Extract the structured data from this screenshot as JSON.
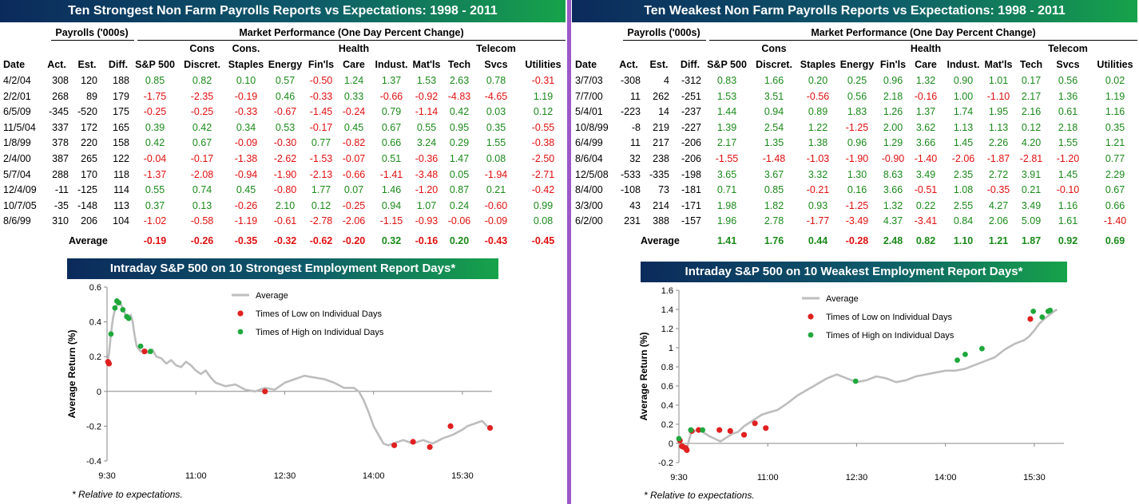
{
  "colors": {
    "positive": "#1a8a1a",
    "negative": "#e01010",
    "line": "#bdbdbd",
    "low_dot": "#e02020",
    "high_dot": "#1fa83c",
    "divider": "#9b59c6"
  },
  "strong": {
    "title": "Ten Strongest Non Farm Payrolls Reports vs Expectations: 1998 - 2011",
    "payrolls_label": "Payrolls ('000s)",
    "market_label": "Market Performance (One Day Percent Change)",
    "sector_top": [
      "",
      "Cons",
      "Cons.",
      "",
      "",
      "Health",
      "",
      "",
      "",
      "Telecom",
      ""
    ],
    "sector_bottom": [
      "S&P 500",
      "Discret.",
      "Staples",
      "Energy",
      "Fin'ls",
      "Care",
      "Indust.",
      "Mat'ls",
      "Tech",
      "Svcs",
      "Utilities"
    ],
    "col_date": "Date",
    "col_act": "Act.",
    "col_est": "Est.",
    "col_diff": "Diff.",
    "rows": [
      {
        "date": "4/2/04",
        "act": "308",
        "est": "120",
        "diff": "188",
        "vals": [
          "0.85",
          "0.82",
          "0.10",
          "0.57",
          "-0.50",
          "1.24",
          "1.37",
          "1.53",
          "2.63",
          "0.78",
          "-0.31"
        ]
      },
      {
        "date": "2/2/01",
        "act": "268",
        "est": "89",
        "diff": "179",
        "vals": [
          "-1.75",
          "-2.35",
          "-0.19",
          "0.46",
          "-0.33",
          "0.33",
          "-0.66",
          "-0.92",
          "-4.83",
          "-4.65",
          "1.19"
        ]
      },
      {
        "date": "6/5/09",
        "act": "-345",
        "est": "-520",
        "diff": "175",
        "vals": [
          "-0.25",
          "-0.25",
          "-0.33",
          "-0.67",
          "-1.45",
          "-0.24",
          "0.79",
          "-1.14",
          "0.42",
          "0.03",
          "0.12"
        ]
      },
      {
        "date": "11/5/04",
        "act": "337",
        "est": "172",
        "diff": "165",
        "vals": [
          "0.39",
          "0.42",
          "0.34",
          "0.53",
          "-0.17",
          "0.45",
          "0.67",
          "0.55",
          "0.95",
          "0.35",
          "-0.55"
        ]
      },
      {
        "date": "1/8/99",
        "act": "378",
        "est": "220",
        "diff": "158",
        "vals": [
          "0.42",
          "0.67",
          "-0.09",
          "-0.30",
          "0.77",
          "-0.82",
          "0.66",
          "3.24",
          "0.29",
          "1.55",
          "-0.38"
        ]
      },
      {
        "date": "2/4/00",
        "act": "387",
        "est": "265",
        "diff": "122",
        "vals": [
          "-0.04",
          "-0.17",
          "-1.38",
          "-2.62",
          "-1.53",
          "-0.07",
          "0.51",
          "-0.36",
          "1.47",
          "0.08",
          "-2.50"
        ]
      },
      {
        "date": "5/7/04",
        "act": "288",
        "est": "170",
        "diff": "118",
        "vals": [
          "-1.37",
          "-2.08",
          "-0.94",
          "-1.90",
          "-2.13",
          "-0.66",
          "-1.41",
          "-3.48",
          "0.05",
          "-1.94",
          "-2.71"
        ]
      },
      {
        "date": "12/4/09",
        "act": "-11",
        "est": "-125",
        "diff": "114",
        "vals": [
          "0.55",
          "0.74",
          "0.45",
          "-0.80",
          "1.77",
          "0.07",
          "1.46",
          "-1.20",
          "0.87",
          "0.21",
          "-0.42"
        ]
      },
      {
        "date": "10/7/05",
        "act": "-35",
        "est": "-148",
        "diff": "113",
        "vals": [
          "0.37",
          "0.13",
          "-0.26",
          "2.10",
          "0.12",
          "-0.25",
          "0.94",
          "1.07",
          "0.24",
          "-0.60",
          "0.99"
        ]
      },
      {
        "date": "8/6/99",
        "act": "310",
        "est": "206",
        "diff": "104",
        "vals": [
          "-1.02",
          "-0.58",
          "-1.19",
          "-0.61",
          "-2.78",
          "-2.06",
          "-1.15",
          "-0.93",
          "-0.06",
          "-0.09",
          "0.08"
        ]
      }
    ],
    "average_label": "Average",
    "averages": [
      "-0.19",
      "-0.26",
      "-0.35",
      "-0.32",
      "-0.62",
      "-0.20",
      "0.32",
      "-0.16",
      "0.20",
      "-0.43",
      "-0.45"
    ],
    "chart_title": "Intraday S&P 500 on 10 Strongest Employment Report Days*",
    "note": "* Relative to expectations."
  },
  "weak": {
    "title": "Ten Weakest Non Farm Payrolls Reports vs Expectations: 1998 - 2011",
    "payrolls_label": "Payrolls ('000s)",
    "market_label": "Market Performance (One Day Percent Change)",
    "sector_top": [
      "",
      "Cons",
      "",
      "",
      "",
      "Health",
      "",
      "",
      "",
      "Telecom",
      ""
    ],
    "sector_bottom": [
      "S&P 500",
      "Discret.",
      "Staples",
      "Energy",
      "Fin'ls",
      "Care",
      "Indust.",
      "Mat'ls",
      "Tech",
      "Svcs",
      "Utilities"
    ],
    "col_date": "Date",
    "col_act": "Act.",
    "col_est": "Est.",
    "col_diff": "Diff.",
    "rows": [
      {
        "date": "3/7/03",
        "act": "-308",
        "est": "4",
        "diff": "-312",
        "vals": [
          "0.83",
          "1.66",
          "0.20",
          "0.25",
          "0.96",
          "1.32",
          "0.90",
          "1.01",
          "0.17",
          "0.56",
          "0.02"
        ]
      },
      {
        "date": "7/7/00",
        "act": "11",
        "est": "262",
        "diff": "-251",
        "vals": [
          "1.53",
          "3.51",
          "-0.56",
          "0.56",
          "2.18",
          "-0.16",
          "1.00",
          "-1.10",
          "2.17",
          "1.36",
          "1.19"
        ]
      },
      {
        "date": "5/4/01",
        "act": "-223",
        "est": "14",
        "diff": "-237",
        "vals": [
          "1.44",
          "0.94",
          "0.89",
          "1.83",
          "1.26",
          "1.37",
          "1.74",
          "1.95",
          "2.16",
          "0.61",
          "1.16"
        ]
      },
      {
        "date": "10/8/99",
        "act": "-8",
        "est": "219",
        "diff": "-227",
        "vals": [
          "1.39",
          "2.54",
          "1.22",
          "-1.25",
          "2.00",
          "3.62",
          "1.13",
          "1.13",
          "0.12",
          "2.18",
          "0.35"
        ]
      },
      {
        "date": "6/4/99",
        "act": "11",
        "est": "217",
        "diff": "-206",
        "vals": [
          "2.17",
          "1.35",
          "1.38",
          "0.96",
          "1.29",
          "3.66",
          "1.45",
          "2.26",
          "4.20",
          "1.55",
          "1.21"
        ]
      },
      {
        "date": "8/6/04",
        "act": "32",
        "est": "238",
        "diff": "-206",
        "vals": [
          "-1.55",
          "-1.48",
          "-1.03",
          "-1.90",
          "-0.90",
          "-1.40",
          "-2.06",
          "-1.87",
          "-2.81",
          "-1.20",
          "0.77"
        ]
      },
      {
        "date": "12/5/08",
        "act": "-533",
        "est": "-335",
        "diff": "-198",
        "vals": [
          "3.65",
          "3.67",
          "3.32",
          "1.30",
          "8.63",
          "3.49",
          "2.35",
          "2.72",
          "3.91",
          "1.45",
          "2.29"
        ]
      },
      {
        "date": "8/4/00",
        "act": "-108",
        "est": "73",
        "diff": "-181",
        "vals": [
          "0.71",
          "0.85",
          "-0.21",
          "0.16",
          "3.66",
          "-0.51",
          "1.08",
          "-0.35",
          "0.21",
          "-0.10",
          "0.67"
        ]
      },
      {
        "date": "3/3/00",
        "act": "43",
        "est": "214",
        "diff": "-171",
        "vals": [
          "1.98",
          "1.82",
          "0.93",
          "-1.25",
          "1.32",
          "0.22",
          "2.55",
          "4.27",
          "3.49",
          "1.16",
          "0.66"
        ]
      },
      {
        "date": "6/2/00",
        "act": "231",
        "est": "388",
        "diff": "-157",
        "vals": [
          "1.96",
          "2.78",
          "-1.77",
          "-3.49",
          "4.37",
          "-3.41",
          "0.84",
          "2.06",
          "5.09",
          "1.61",
          "-1.40"
        ]
      }
    ],
    "average_label": "Average",
    "averages": [
      "1.41",
      "1.76",
      "0.44",
      "-0.28",
      "2.48",
      "0.82",
      "1.10",
      "1.21",
      "1.87",
      "0.92",
      "0.69"
    ],
    "chart_title": "Intraday S&P 500 on 10 Weakest Employment Report Days*",
    "note": "* Relative to expectations."
  },
  "chart_data": [
    {
      "type": "line",
      "title": "Intraday S&P 500 on 10 Strongest Employment Report Days*",
      "xlabel": "",
      "ylabel": "Average Return (%)",
      "xlim": [
        570,
        960
      ],
      "ylim": [
        -0.4,
        0.6
      ],
      "yticks": [
        -0.4,
        -0.2,
        0,
        0.2,
        0.4,
        0.6
      ],
      "ytick_labels": [
        "-0.4",
        "-0.2",
        "0",
        "0.2",
        "0.4",
        "0.6"
      ],
      "xticks": [
        570,
        660,
        750,
        840,
        930
      ],
      "xtick_labels": [
        "9:30",
        "11:00",
        "12:30",
        "14:00",
        "15:30"
      ],
      "legend": [
        "Average",
        "Times of Low on Individual Days",
        "Times of High on Individual Days"
      ],
      "legend_position": "top-right",
      "series": [
        {
          "name": "Average",
          "x": [
            570,
            572,
            574,
            576,
            578,
            580,
            582,
            584,
            586,
            588,
            590,
            592,
            594,
            596,
            598,
            600,
            604,
            608,
            612,
            616,
            620,
            625,
            630,
            635,
            640,
            645,
            650,
            655,
            660,
            665,
            670,
            675,
            680,
            690,
            700,
            710,
            720,
            730,
            740,
            750,
            760,
            770,
            780,
            790,
            800,
            810,
            820,
            825,
            830,
            835,
            840,
            845,
            850,
            855,
            860,
            870,
            880,
            890,
            900,
            910,
            920,
            930,
            935,
            940,
            945,
            950,
            955,
            958
          ],
          "y": [
            0.15,
            0.22,
            0.33,
            0.42,
            0.47,
            0.5,
            0.52,
            0.5,
            0.48,
            0.45,
            0.42,
            0.43,
            0.44,
            0.4,
            0.32,
            0.26,
            0.23,
            0.24,
            0.22,
            0.24,
            0.2,
            0.19,
            0.16,
            0.18,
            0.15,
            0.14,
            0.17,
            0.15,
            0.12,
            0.1,
            0.12,
            0.08,
            0.05,
            0.03,
            0.04,
            0.01,
            0.0,
            0.02,
            0.01,
            0.05,
            0.07,
            0.09,
            0.08,
            0.07,
            0.05,
            0.02,
            0.02,
            0.0,
            -0.05,
            -0.12,
            -0.2,
            -0.25,
            -0.3,
            -0.31,
            -0.3,
            -0.28,
            -0.3,
            -0.28,
            -0.3,
            -0.27,
            -0.25,
            -0.22,
            -0.2,
            -0.19,
            -0.18,
            -0.17,
            -0.2,
            -0.21
          ]
        },
        {
          "name": "Times of Low on Individual Days",
          "x": [
            571,
            572,
            608,
            730,
            861,
            880,
            897,
            918,
            958
          ],
          "y": [
            0.17,
            0.16,
            0.23,
            0.0,
            -0.31,
            -0.29,
            -0.32,
            -0.2,
            -0.21
          ]
        },
        {
          "name": "Times of High on Individual Days",
          "x": [
            574,
            578,
            580,
            582,
            586,
            590,
            592,
            604,
            614
          ],
          "y": [
            0.33,
            0.48,
            0.52,
            0.51,
            0.47,
            0.43,
            0.42,
            0.26,
            0.23
          ]
        }
      ]
    },
    {
      "type": "line",
      "title": "Intraday S&P 500 on 10 Weakest Employment Report Days*",
      "xlabel": "",
      "ylabel": "Average Return (%)",
      "xlim": [
        570,
        960
      ],
      "ylim": [
        -0.2,
        1.6
      ],
      "yticks": [
        -0.2,
        0,
        0.2,
        0.4,
        0.6,
        0.8,
        1.0,
        1.2,
        1.4,
        1.6
      ],
      "ytick_labels": [
        "-0.2",
        "0",
        "0.2",
        "0.4",
        "0.6",
        "0.8",
        "1",
        "1.2",
        "1.4",
        "1.6"
      ],
      "xticks": [
        570,
        660,
        750,
        840,
        930
      ],
      "xtick_labels": [
        "9:30",
        "11:00",
        "12:30",
        "14:00",
        "15:30"
      ],
      "legend": [
        "Average",
        "Times of Low on Individual Days",
        "Times of High on Individual Days"
      ],
      "legend_position": "top-left",
      "series": [
        {
          "name": "Average",
          "x": [
            570,
            574,
            578,
            582,
            586,
            590,
            594,
            600,
            606,
            612,
            618,
            624,
            630,
            636,
            642,
            648,
            654,
            660,
            670,
            680,
            690,
            700,
            710,
            720,
            730,
            740,
            750,
            760,
            770,
            780,
            790,
            800,
            810,
            820,
            830,
            840,
            850,
            860,
            870,
            880,
            890,
            900,
            910,
            920,
            925,
            930,
            935,
            940,
            945,
            950,
            953
          ],
          "y": [
            0.0,
            -0.04,
            -0.05,
            0.1,
            0.13,
            0.14,
            0.12,
            0.08,
            0.05,
            0.02,
            0.06,
            0.1,
            0.12,
            0.18,
            0.22,
            0.26,
            0.3,
            0.32,
            0.35,
            0.42,
            0.5,
            0.56,
            0.62,
            0.68,
            0.72,
            0.68,
            0.64,
            0.66,
            0.7,
            0.68,
            0.64,
            0.66,
            0.7,
            0.72,
            0.74,
            0.76,
            0.76,
            0.78,
            0.82,
            0.86,
            0.9,
            0.98,
            1.04,
            1.08,
            1.12,
            1.18,
            1.25,
            1.3,
            1.34,
            1.38,
            1.4
          ]
        },
        {
          "name": "Times of Low on Individual Days",
          "x": [
            571,
            573,
            575,
            577,
            578,
            583,
            590,
            611,
            622,
            636,
            647,
            658,
            926
          ],
          "y": [
            0.03,
            -0.03,
            -0.04,
            -0.05,
            -0.07,
            0.13,
            0.14,
            0.14,
            0.13,
            0.09,
            0.21,
            0.16,
            1.3
          ]
        },
        {
          "name": "Times of High on Individual Days",
          "x": [
            570,
            582,
            594,
            749,
            852,
            860,
            877,
            929,
            938,
            944,
            946
          ],
          "y": [
            0.05,
            0.14,
            0.14,
            0.65,
            0.87,
            0.93,
            0.99,
            1.38,
            1.32,
            1.38,
            1.39
          ]
        }
      ]
    }
  ]
}
